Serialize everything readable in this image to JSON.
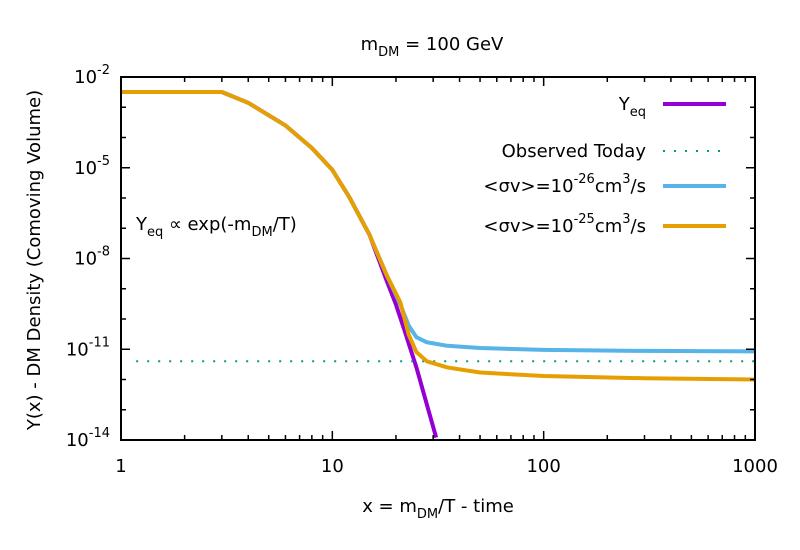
{
  "chart_data": {
    "type": "line",
    "title_main": "m",
    "title_sub": "DM",
    "title_rest": " = 100 GeV",
    "xlabel_main": "x = m",
    "xlabel_sub": "DM",
    "xlabel_rest": "/T - time",
    "ylabel": "Y(x) - DM Density (Comoving Volume)",
    "x_scale": "log",
    "y_scale": "log",
    "xlim": [
      1,
      1000
    ],
    "ylim": [
      1e-14,
      0.01
    ],
    "x_ticks": [
      {
        "value": 1,
        "label": "1"
      },
      {
        "value": 10,
        "label": "10"
      },
      {
        "value": 100,
        "label": "100"
      },
      {
        "value": 1000,
        "label": "1000"
      }
    ],
    "y_ticks": [
      {
        "value": 1e-14,
        "base": "10",
        "exp": "-14"
      },
      {
        "value": 1e-11,
        "base": "10",
        "exp": "-11"
      },
      {
        "value": 1e-08,
        "base": "10",
        "exp": "-8"
      },
      {
        "value": 1e-05,
        "base": "10",
        "exp": "-5"
      },
      {
        "value": 0.01,
        "base": "10",
        "exp": "-2"
      }
    ],
    "annotation": {
      "pre": "Y",
      "sub": "eq",
      "mid": " ∝ exp(-m",
      "sub2": "DM",
      "post": "/T)"
    },
    "legend_position": "top-right",
    "series": [
      {
        "legend": {
          "pre": "Y",
          "sub": "eq",
          "sup": "",
          "post": ""
        },
        "color": "#9400d3",
        "style": "solid",
        "points": [
          [
            1,
            0.0032
          ],
          [
            3,
            0.0032
          ],
          [
            4,
            0.0014
          ],
          [
            6,
            0.00025
          ],
          [
            8,
            4.5e-05
          ],
          [
            10,
            8.5e-06
          ],
          [
            12,
            1.1e-06
          ],
          [
            15,
            6e-08
          ],
          [
            18,
            2e-09
          ],
          [
            20,
            3e-10
          ],
          [
            22,
            4e-11
          ],
          [
            25,
            2.5e-12
          ],
          [
            28,
            1.5e-13
          ],
          [
            31,
            1.2e-14
          ]
        ]
      },
      {
        "legend": {
          "pre": "Observed Today",
          "sub": "",
          "sup": "",
          "post": ""
        },
        "color": "#009e73",
        "style": "dotted",
        "points": [
          [
            1.18,
            4e-12
          ],
          [
            1000,
            4e-12
          ]
        ]
      },
      {
        "legend": {
          "pre": "<σv>=10",
          "sub": "",
          "sup": "-26",
          "post": "cm³/s"
        },
        "legend_post_pre": "cm",
        "legend_post_sup": "3",
        "legend_post_rest": "/s",
        "color": "#56b4e9",
        "style": "solid",
        "points": [
          [
            1,
            0.0032
          ],
          [
            3,
            0.0032
          ],
          [
            4,
            0.0014
          ],
          [
            6,
            0.00025
          ],
          [
            8,
            4.5e-05
          ],
          [
            10,
            8.5e-06
          ],
          [
            12,
            1.1e-06
          ],
          [
            15,
            6e-08
          ],
          [
            18,
            3e-09
          ],
          [
            21,
            3e-10
          ],
          [
            23,
            6e-11
          ],
          [
            25,
            2.5e-11
          ],
          [
            28,
            1.7e-11
          ],
          [
            35,
            1.3e-11
          ],
          [
            50,
            1.1e-11
          ],
          [
            100,
            9.5e-12
          ],
          [
            300,
            8.8e-12
          ],
          [
            1000,
            8.5e-12
          ]
        ]
      },
      {
        "legend": {
          "pre": "<σv>=10",
          "sub": "",
          "sup": "-25",
          "post": "cm³/s"
        },
        "legend_post_pre": "cm",
        "legend_post_sup": "3",
        "legend_post_rest": "/s",
        "color": "#e69f00",
        "style": "solid",
        "points": [
          [
            1,
            0.0032
          ],
          [
            3,
            0.0032
          ],
          [
            4,
            0.0014
          ],
          [
            6,
            0.00025
          ],
          [
            8,
            4.5e-05
          ],
          [
            10,
            8.5e-06
          ],
          [
            12,
            1.1e-06
          ],
          [
            15,
            6e-08
          ],
          [
            18,
            3e-09
          ],
          [
            21,
            3.5e-10
          ],
          [
            23,
            3e-11
          ],
          [
            25,
            8e-12
          ],
          [
            28,
            4e-12
          ],
          [
            35,
            2.5e-12
          ],
          [
            50,
            1.7e-12
          ],
          [
            100,
            1.3e-12
          ],
          [
            300,
            1.1e-12
          ],
          [
            1000,
            1e-12
          ]
        ]
      }
    ]
  }
}
